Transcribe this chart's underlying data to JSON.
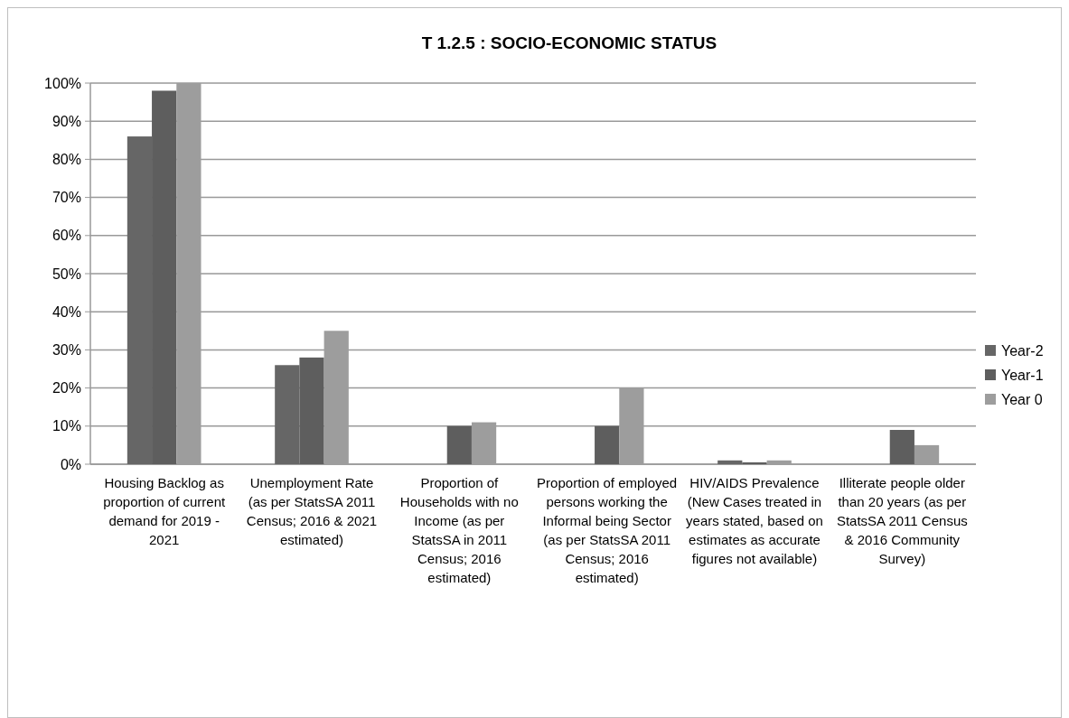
{
  "chart_data": {
    "type": "bar",
    "title": "T 1.2.5 : SOCIO-ECONOMIC STATUS",
    "categories": [
      "Housing Backlog as proportion of current demand for 2019 - 2021",
      "Unemployment Rate (as per StatsSA 2011 Census; 2016 & 2021 estimated)",
      "Proportion of Households with no Income (as per StatsSA in 2011 Census; 2016 estimated)",
      "Proportion of employed persons working the Informal being Sector (as per StatsSA 2011 Census; 2016 estimated)",
      "HIV/AIDS Prevalence (New Cases treated in years stated, based on estimates as accurate figures not available)",
      "Illiterate people older than 20 years (as per StatsSA 2011 Census & 2016 Community Survey)"
    ],
    "series": [
      {
        "name": "Year-2",
        "color": "#666666",
        "values": [
          86,
          26,
          null,
          null,
          1,
          null
        ]
      },
      {
        "name": "Year-1",
        "color": "#5e5e5e",
        "values": [
          98,
          28,
          10,
          10,
          0.5,
          9
        ]
      },
      {
        "name": "Year 0",
        "color": "#9d9d9d",
        "values": [
          100,
          35,
          11,
          20,
          1,
          5
        ]
      }
    ],
    "ylim": [
      0,
      100
    ],
    "yticks": [
      {
        "value": 0,
        "label": "0%"
      },
      {
        "value": 10,
        "label": "10%"
      },
      {
        "value": 20,
        "label": "20%"
      },
      {
        "value": 30,
        "label": "30%"
      },
      {
        "value": 40,
        "label": "40%"
      },
      {
        "value": 50,
        "label": "50%"
      },
      {
        "value": 60,
        "label": "60%"
      },
      {
        "value": 70,
        "label": "70%"
      },
      {
        "value": 80,
        "label": "80%"
      },
      {
        "value": 90,
        "label": "90%"
      },
      {
        "value": 100,
        "label": "100%"
      }
    ],
    "grid": "y",
    "legend": "right"
  }
}
